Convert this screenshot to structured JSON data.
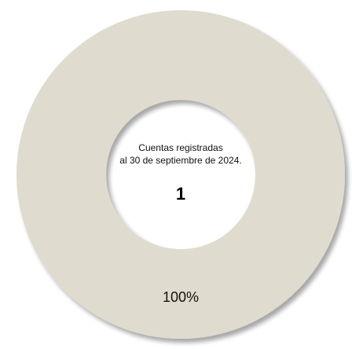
{
  "colors": {
    "ring": "#dfdbcf",
    "background": "#ffffff"
  },
  "chart_data": {
    "type": "pie",
    "variant": "donut",
    "title": "",
    "center_text": {
      "line1": "Cuentas registradas",
      "line2": "al 30 de septiembre de 2024.",
      "value": "1"
    },
    "slices": [
      {
        "value": 100,
        "data_label": "100%"
      }
    ],
    "legend": "none"
  }
}
